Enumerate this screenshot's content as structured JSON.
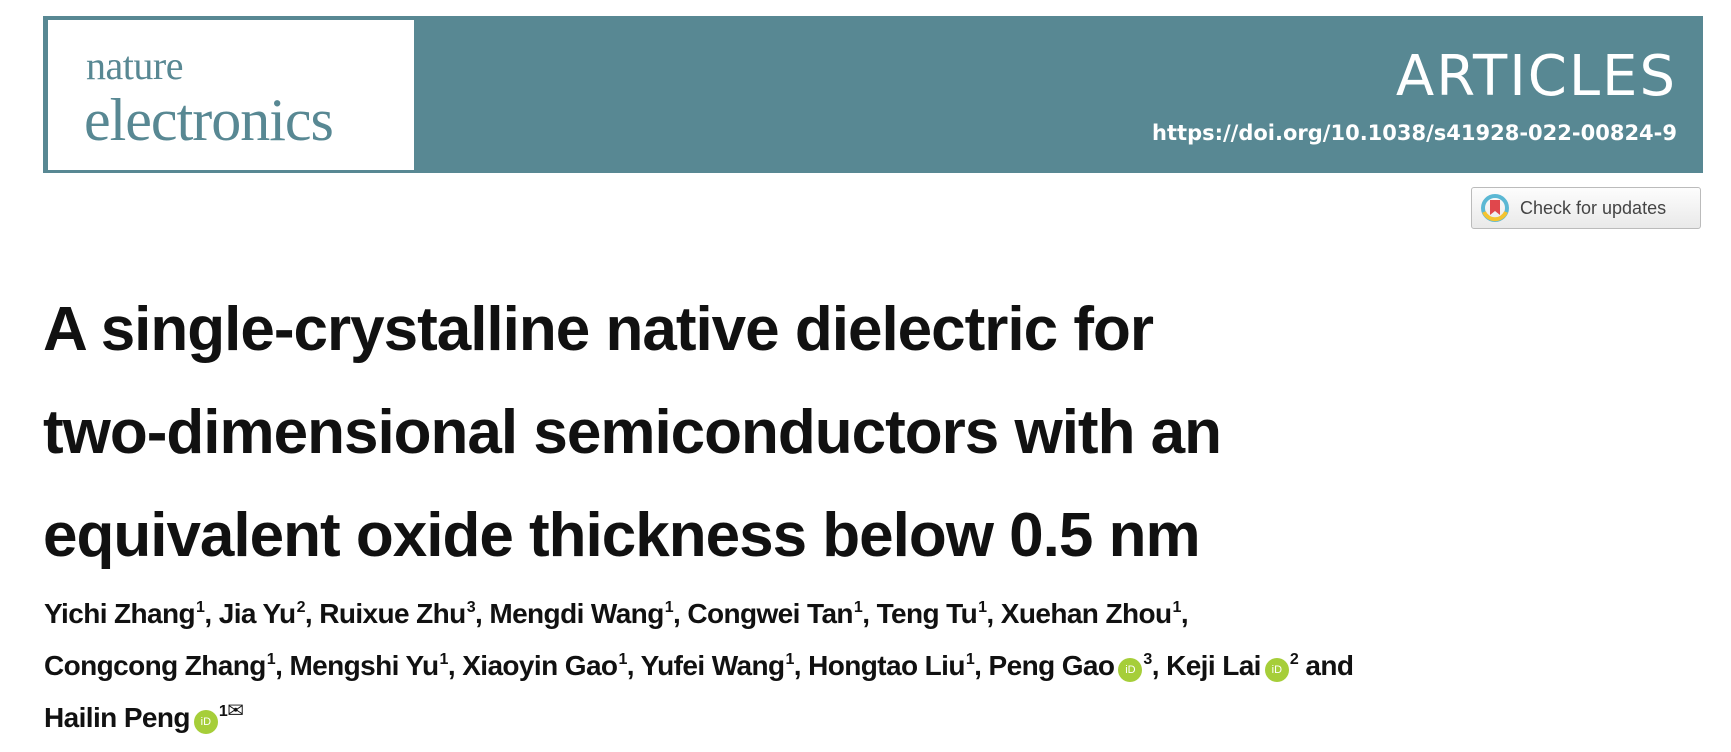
{
  "header": {
    "journal_line1": "nature",
    "journal_line2": "electronics",
    "section": "ARTICLES",
    "doi": "https://doi.org/10.1038/s41928-022-00824-9",
    "brand_color": "#588893"
  },
  "check_updates": {
    "label": "Check for updates",
    "icon": "crossmark-icon"
  },
  "title_lines": [
    "A single-crystalline native dielectric for",
    "two-dimensional semiconductors with an",
    "equivalent oxide thickness below 0.5 nm"
  ],
  "authors": {
    "line1": [
      {
        "name": "Yichi Zhang",
        "aff": "1",
        "sep": ", "
      },
      {
        "name": "Jia Yu",
        "aff": "2",
        "sep": ", "
      },
      {
        "name": "Ruixue Zhu",
        "aff": "3",
        "sep": ", "
      },
      {
        "name": "Mengdi Wang",
        "aff": "1",
        "sep": ", "
      },
      {
        "name": "Congwei Tan",
        "aff": "1",
        "sep": ", "
      },
      {
        "name": "Teng Tu",
        "aff": "1",
        "sep": ", "
      },
      {
        "name": "Xuehan Zhou",
        "aff": "1",
        "sep": ","
      }
    ],
    "line2": [
      {
        "name": "Congcong Zhang",
        "aff": "1",
        "sep": ", "
      },
      {
        "name": "Mengshi Yu",
        "aff": "1",
        "sep": ", "
      },
      {
        "name": "Xiaoyin Gao",
        "aff": "1",
        "sep": ", "
      },
      {
        "name": "Yufei Wang",
        "aff": "1",
        "sep": ", "
      },
      {
        "name": "Hongtao Liu",
        "aff": "1",
        "sep": ", "
      },
      {
        "name": "Peng Gao",
        "aff": "3",
        "sep": ", ",
        "orcid": true
      },
      {
        "name": "Keji Lai",
        "aff": "2",
        "sep": " and",
        "orcid": true
      }
    ],
    "line3": [
      {
        "name": "Hailin Peng",
        "aff": "1",
        "sep": "",
        "orcid": true,
        "corresponding": true
      }
    ],
    "orcid_label": "iD",
    "mail_symbol": "✉"
  }
}
